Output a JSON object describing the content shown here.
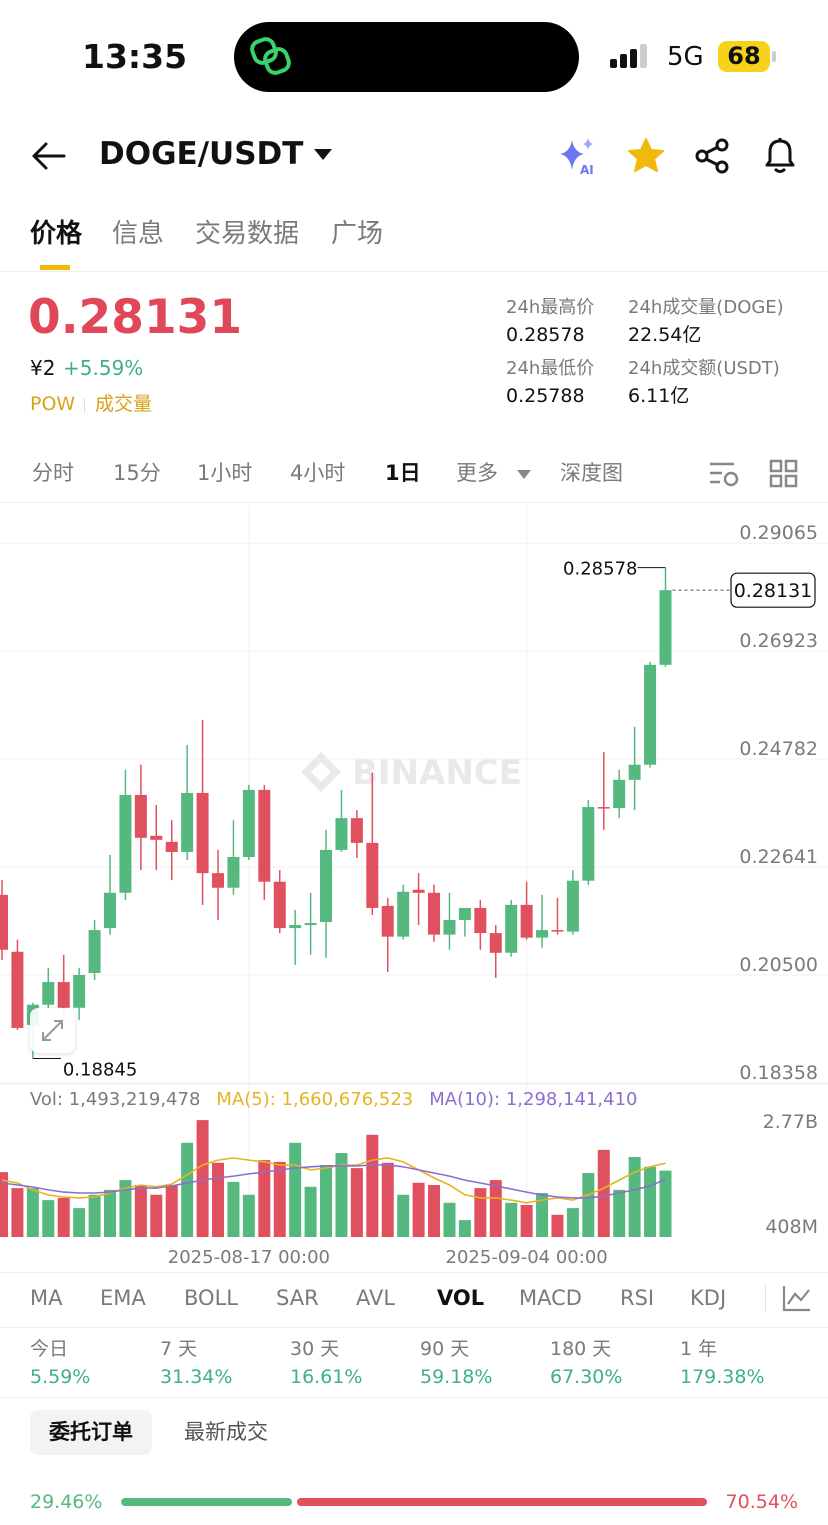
{
  "status_bar": {
    "time": "13:35",
    "network": "5G",
    "battery": "68"
  },
  "header": {
    "pair": "DOGE/USDT"
  },
  "tabs": [
    "价格",
    "信息",
    "交易数据",
    "广场"
  ],
  "price": {
    "last": "0.28131",
    "cny": "¥2",
    "change": "+5.59%",
    "tags": [
      "POW",
      "成交量"
    ]
  },
  "stats": [
    {
      "label": "24h最高价",
      "value": "0.28578"
    },
    {
      "label": "24h成交量(DOGE)",
      "value": "22.54亿"
    },
    {
      "label": "24h最低价",
      "value": "0.25788"
    },
    {
      "label": "24h成交额(USDT)",
      "value": "6.11亿"
    }
  ],
  "intervals": [
    "分时",
    "15分",
    "1小时",
    "4小时",
    "1日",
    "更多",
    "深度图"
  ],
  "watermark": "BINANCE",
  "chart_data": [
    {
      "type": "candlestick",
      "up_color": "#55b97f",
      "down_color": "#e1505e",
      "ylim": [
        0.18358,
        0.2982
      ],
      "yticks": [
        0.29065,
        0.26923,
        0.24782,
        0.22641,
        {
          "value": 0.205,
          "label": "0.20500"
        },
        0.18358
      ],
      "grid": true,
      "open": [
        0.2209,
        0.2096,
        0.1951,
        0.1991,
        0.2036,
        0.1985,
        0.2054,
        0.2143,
        0.2213,
        0.2407,
        0.2326,
        0.2314,
        0.2294,
        0.2411,
        0.2252,
        0.2223,
        0.2284,
        0.2417,
        0.2235,
        0.2143,
        0.2149,
        0.2155,
        0.2298,
        0.2361,
        0.2312,
        0.2187,
        0.2126,
        0.2219,
        0.2213,
        0.213,
        0.2159,
        0.2183,
        0.2133,
        0.2094,
        0.2189,
        0.2124,
        0.2139,
        0.2136,
        0.2237,
        0.2383,
        0.2381,
        0.2437,
        0.2467,
        0.2665
      ],
      "high": [
        0.2238,
        0.212,
        0.1995,
        0.2064,
        0.209,
        0.2064,
        0.2159,
        0.2288,
        0.2457,
        0.2467,
        0.2387,
        0.2357,
        0.2506,
        0.2556,
        0.2298,
        0.2357,
        0.2427,
        0.2427,
        0.2258,
        0.2179,
        0.2213,
        0.2338,
        0.2417,
        0.2377,
        0.2451,
        0.2203,
        0.2229,
        0.2252,
        0.2229,
        0.2213,
        0.2179,
        0.2199,
        0.2149,
        0.2199,
        0.2235,
        0.2209,
        0.2203,
        0.2258,
        0.2397,
        0.2492,
        0.2457,
        0.2542,
        0.2671,
        0.28578
      ],
      "low": [
        0.208,
        0.1941,
        0.18845,
        0.1981,
        0.1961,
        0.1961,
        0.204,
        0.213,
        0.2199,
        0.2258,
        0.2258,
        0.2238,
        0.2278,
        0.2189,
        0.2159,
        0.2209,
        0.2278,
        0.2199,
        0.2133,
        0.207,
        0.209,
        0.2084,
        0.2294,
        0.2282,
        0.2169,
        0.2056,
        0.212,
        0.2149,
        0.2116,
        0.21,
        0.2126,
        0.21,
        0.2044,
        0.2086,
        0.212,
        0.2104,
        0.213,
        0.213,
        0.2229,
        0.2338,
        0.2361,
        0.2377,
        0.2461,
        0.2661
      ],
      "close": [
        0.21,
        0.1945,
        0.1991,
        0.2036,
        0.1985,
        0.205,
        0.2139,
        0.2213,
        0.2407,
        0.2322,
        0.2318,
        0.2294,
        0.2411,
        0.2252,
        0.2223,
        0.2284,
        0.2417,
        0.2235,
        0.2143,
        0.2149,
        0.2153,
        0.2298,
        0.2361,
        0.2312,
        0.2183,
        0.2126,
        0.2215,
        0.2213,
        0.213,
        0.2159,
        0.2183,
        0.2133,
        0.2094,
        0.2189,
        0.2124,
        0.2139,
        0.2136,
        0.2237,
        0.2383,
        0.2381,
        0.2437,
        0.2467,
        0.2665,
        0.28131
      ]
    },
    {
      "type": "bar",
      "name": "Vol: 1,493,219,478",
      "categories": [
        null,
        null,
        null,
        null,
        null,
        null,
        null,
        null,
        null,
        null,
        null,
        null,
        null,
        null,
        null,
        null,
        "2025-08-17 00:00",
        null,
        null,
        null,
        null,
        null,
        null,
        null,
        null,
        null,
        null,
        null,
        null,
        null,
        null,
        null,
        null,
        null,
        "2025-09-04 00:00",
        null,
        null,
        null,
        null,
        null,
        null,
        null,
        null,
        null
      ],
      "values": [
        1460000000,
        1100000000,
        1100000000,
        830000000,
        880000000,
        650000000,
        950000000,
        1060000000,
        1280000000,
        1170000000,
        950000000,
        1170000000,
        2120000000,
        2630000000,
        1670000000,
        1240000000,
        950000000,
        1730000000,
        1690000000,
        2120000000,
        1130000000,
        1620000000,
        1890000000,
        1550000000,
        2300000000,
        1670000000,
        950000000,
        1220000000,
        1170000000,
        770000000,
        380000000,
        1100000000,
        1280000000,
        770000000,
        720000000,
        990000000,
        500000000,
        650000000,
        1440000000,
        1960000000,
        1060000000,
        1800000000,
        1580000000,
        1493219478
      ],
      "ylim": [
        0,
        2857500000
      ],
      "yticks": [
        {
          "value": 2770000000,
          "label": "2.77B"
        },
        {
          "value": 408000000,
          "label": "408M"
        }
      ],
      "series": [
        {
          "name": "MA(5): 1,660,676,523",
          "color": "#e6b422",
          "values": [
            1280000000,
            1215000000,
            1060000000,
            945000000,
            900000000,
            880000000,
            900000000,
            990000000,
            1100000000,
            1170000000,
            1130000000,
            1190000000,
            1400000000,
            1620000000,
            1730000000,
            1780000000,
            1730000000,
            1690000000,
            1620000000,
            1620000000,
            1510000000,
            1550000000,
            1620000000,
            1620000000,
            1730000000,
            1780000000,
            1690000000,
            1510000000,
            1330000000,
            1170000000,
            950000000,
            880000000,
            880000000,
            830000000,
            770000000,
            830000000,
            880000000,
            830000000,
            950000000,
            1100000000,
            1280000000,
            1460000000,
            1580000000,
            1660676523
          ]
        },
        {
          "name": "MA(10): 1,298,141,410",
          "color": "#8b6fd0",
          "values": [
            1215000000,
            1170000000,
            1125000000,
            1060000000,
            1010000000,
            990000000,
            990000000,
            1010000000,
            1060000000,
            1100000000,
            1100000000,
            1150000000,
            1215000000,
            1280000000,
            1330000000,
            1370000000,
            1420000000,
            1460000000,
            1510000000,
            1550000000,
            1580000000,
            1600000000,
            1600000000,
            1600000000,
            1620000000,
            1620000000,
            1580000000,
            1510000000,
            1440000000,
            1370000000,
            1280000000,
            1215000000,
            1150000000,
            1080000000,
            1010000000,
            945000000,
            900000000,
            880000000,
            880000000,
            920000000,
            990000000,
            1060000000,
            1150000000,
            1298141410
          ]
        }
      ]
    }
  ],
  "indicators": [
    "MA",
    "EMA",
    "BOLL",
    "SAR",
    "AVL",
    "VOL",
    "MACD",
    "RSI",
    "KDJ"
  ],
  "performance": [
    {
      "label": "今日",
      "value": "5.59%"
    },
    {
      "label": "7 天",
      "value": "31.34%"
    },
    {
      "label": "30 天",
      "value": "16.61%"
    },
    {
      "label": "90 天",
      "value": "59.18%"
    },
    {
      "label": "180 天",
      "value": "67.30%"
    },
    {
      "label": "1 年",
      "value": "179.38%"
    }
  ],
  "order_tabs": [
    "委托订单",
    "最新成交"
  ],
  "order_book": {
    "values": [
      29.46,
      70.54
    ],
    "value_labels": [
      "29.46%",
      "70.54%"
    ],
    "colors": [
      "#55b97f",
      "#e1505e"
    ]
  }
}
